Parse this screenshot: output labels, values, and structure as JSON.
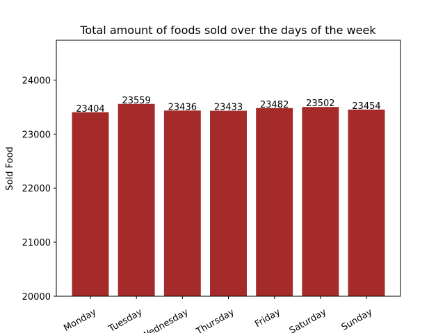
{
  "chart_data": {
    "type": "bar",
    "title": "Total amount of foods sold over the days of the week",
    "y_label": "Sold Food",
    "categories": [
      "Monday",
      "Tuesday",
      "Wednesday",
      "Thursday",
      "Friday",
      "Saturday",
      "Sunday"
    ],
    "values": [
      23404,
      23559,
      23436,
      23433,
      23482,
      23502,
      23454
    ],
    "color": "#a52a2a",
    "ylim": [
      20000,
      24737
    ],
    "yticks": [
      20000,
      21000,
      22000,
      23000,
      24000
    ]
  }
}
